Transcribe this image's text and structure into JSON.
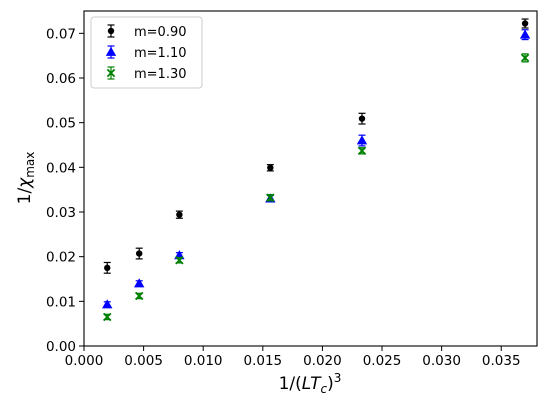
{
  "chart_data": {
    "type": "scatter",
    "title": "",
    "xlabel": "1/(LT_c)^3",
    "ylabel": "1/χ_max",
    "xlim": [
      0.0,
      0.038
    ],
    "ylim": [
      0.0,
      0.075
    ],
    "xticks": [
      0.0,
      0.005,
      0.01,
      0.015,
      0.02,
      0.025,
      0.03,
      0.035
    ],
    "xtick_labels": [
      "0.000",
      "0.005",
      "0.010",
      "0.015",
      "0.020",
      "0.025",
      "0.030",
      "0.035"
    ],
    "yticks": [
      0.0,
      0.01,
      0.02,
      0.03,
      0.04,
      0.05,
      0.06,
      0.07
    ],
    "ytick_labels": [
      "0.00",
      "0.01",
      "0.02",
      "0.03",
      "0.04",
      "0.05",
      "0.06",
      "0.07"
    ],
    "grid": false,
    "legend_position": "top-left",
    "series": [
      {
        "name": "m=0.90",
        "color": "#000000",
        "marker": "circle",
        "x": [
          0.00195,
          0.00463,
          0.008,
          0.01563,
          0.02332,
          0.037
        ],
        "y": [
          0.0175,
          0.0207,
          0.0294,
          0.0399,
          0.0509,
          0.0722
        ],
        "err": [
          0.0012,
          0.0012,
          0.0008,
          0.0007,
          0.0012,
          0.001
        ]
      },
      {
        "name": "m=1.10",
        "color": "#0000ff",
        "marker": "triangle",
        "x": [
          0.00195,
          0.00463,
          0.008,
          0.01563,
          0.02332,
          0.037
        ],
        "y": [
          0.0093,
          0.014,
          0.0203,
          0.033,
          0.046,
          0.0697
        ],
        "err": [
          0.0006,
          0.0006,
          0.0006,
          0.0007,
          0.0012,
          0.0011
        ]
      },
      {
        "name": "m=1.30",
        "color": "#008000",
        "marker": "x",
        "x": [
          0.00195,
          0.00463,
          0.008,
          0.01563,
          0.02332,
          0.037
        ],
        "y": [
          0.0065,
          0.0112,
          0.0192,
          0.0332,
          0.0437,
          0.0645
        ],
        "err": [
          0.0006,
          0.0006,
          0.0006,
          0.0007,
          0.0007,
          0.0009
        ]
      }
    ]
  }
}
